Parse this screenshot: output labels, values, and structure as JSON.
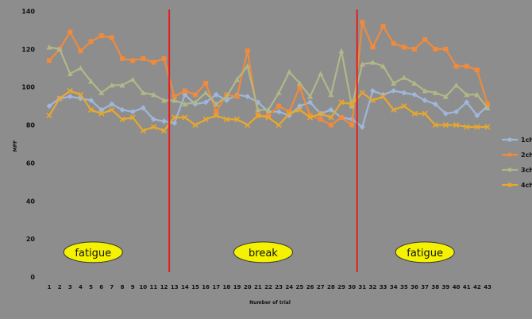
{
  "chart_data": {
    "type": "line",
    "title": "",
    "xlabel": "Number of trial",
    "ylabel": "MPF",
    "ylim": [
      0,
      140
    ],
    "yticks": [
      0,
      20,
      40,
      60,
      80,
      100,
      120,
      140
    ],
    "x": [
      1,
      2,
      3,
      4,
      5,
      6,
      7,
      8,
      9,
      10,
      11,
      12,
      13,
      14,
      15,
      16,
      17,
      18,
      19,
      20,
      21,
      22,
      23,
      24,
      25,
      26,
      27,
      28,
      29,
      30,
      31,
      32,
      33,
      34,
      35,
      36,
      37,
      38,
      39,
      40,
      41,
      42,
      43
    ],
    "series": [
      {
        "name": "1ch",
        "color": "#9fb7dc",
        "marker": "diamond",
        "values": [
          90,
          94,
          95,
          94,
          93,
          88,
          91,
          88,
          87,
          89,
          83,
          82,
          81,
          96,
          91,
          92,
          96,
          93,
          96,
          95,
          92,
          87,
          87,
          85,
          90,
          92,
          86,
          88,
          84,
          83,
          79,
          98,
          96,
          98,
          97,
          96,
          93,
          91,
          86,
          87,
          92,
          85,
          90
        ]
      },
      {
        "name": "2ch",
        "color": "#f08a3c",
        "marker": "square",
        "values": [
          114,
          120,
          129,
          119,
          124,
          127,
          126,
          115,
          114,
          115,
          113,
          115,
          95,
          98,
          96,
          102,
          87,
          96,
          95,
          119,
          85,
          85,
          90,
          87,
          100,
          85,
          83,
          80,
          84,
          80,
          134,
          121,
          132,
          123,
          121,
          120,
          125,
          120,
          120,
          111,
          111,
          109,
          91
        ]
      },
      {
        "name": "3ch",
        "color": "#b0b888",
        "marker": "triangle",
        "values": [
          121,
          120,
          107,
          110,
          103,
          97,
          101,
          101,
          104,
          97,
          96,
          93,
          93,
          91,
          92,
          97,
          91,
          95,
          104,
          111,
          88,
          88,
          97,
          108,
          102,
          95,
          107,
          96,
          119,
          90,
          112,
          113,
          111,
          102,
          105,
          102,
          98,
          97,
          95,
          101,
          96,
          96,
          89
        ]
      },
      {
        "name": "4ch",
        "color": "#e8a82c",
        "marker": "cross",
        "values": [
          85,
          94,
          98,
          96,
          88,
          86,
          88,
          83,
          84,
          77,
          79,
          77,
          84,
          84,
          80,
          83,
          85,
          83,
          83,
          80,
          85,
          84,
          80,
          86,
          88,
          84,
          86,
          84,
          92,
          91,
          97,
          93,
          95,
          88,
          90,
          86,
          86,
          80,
          80,
          80,
          79,
          79,
          79
        ]
      }
    ],
    "separators_after_trial": [
      12.5,
      30.5
    ],
    "regions": [
      {
        "label": "fatigue",
        "from": 1,
        "to": 12
      },
      {
        "label": "break",
        "from": 13,
        "to": 30
      },
      {
        "label": "fatigue",
        "from": 31,
        "to": 43
      }
    ],
    "legend_position": "right"
  }
}
